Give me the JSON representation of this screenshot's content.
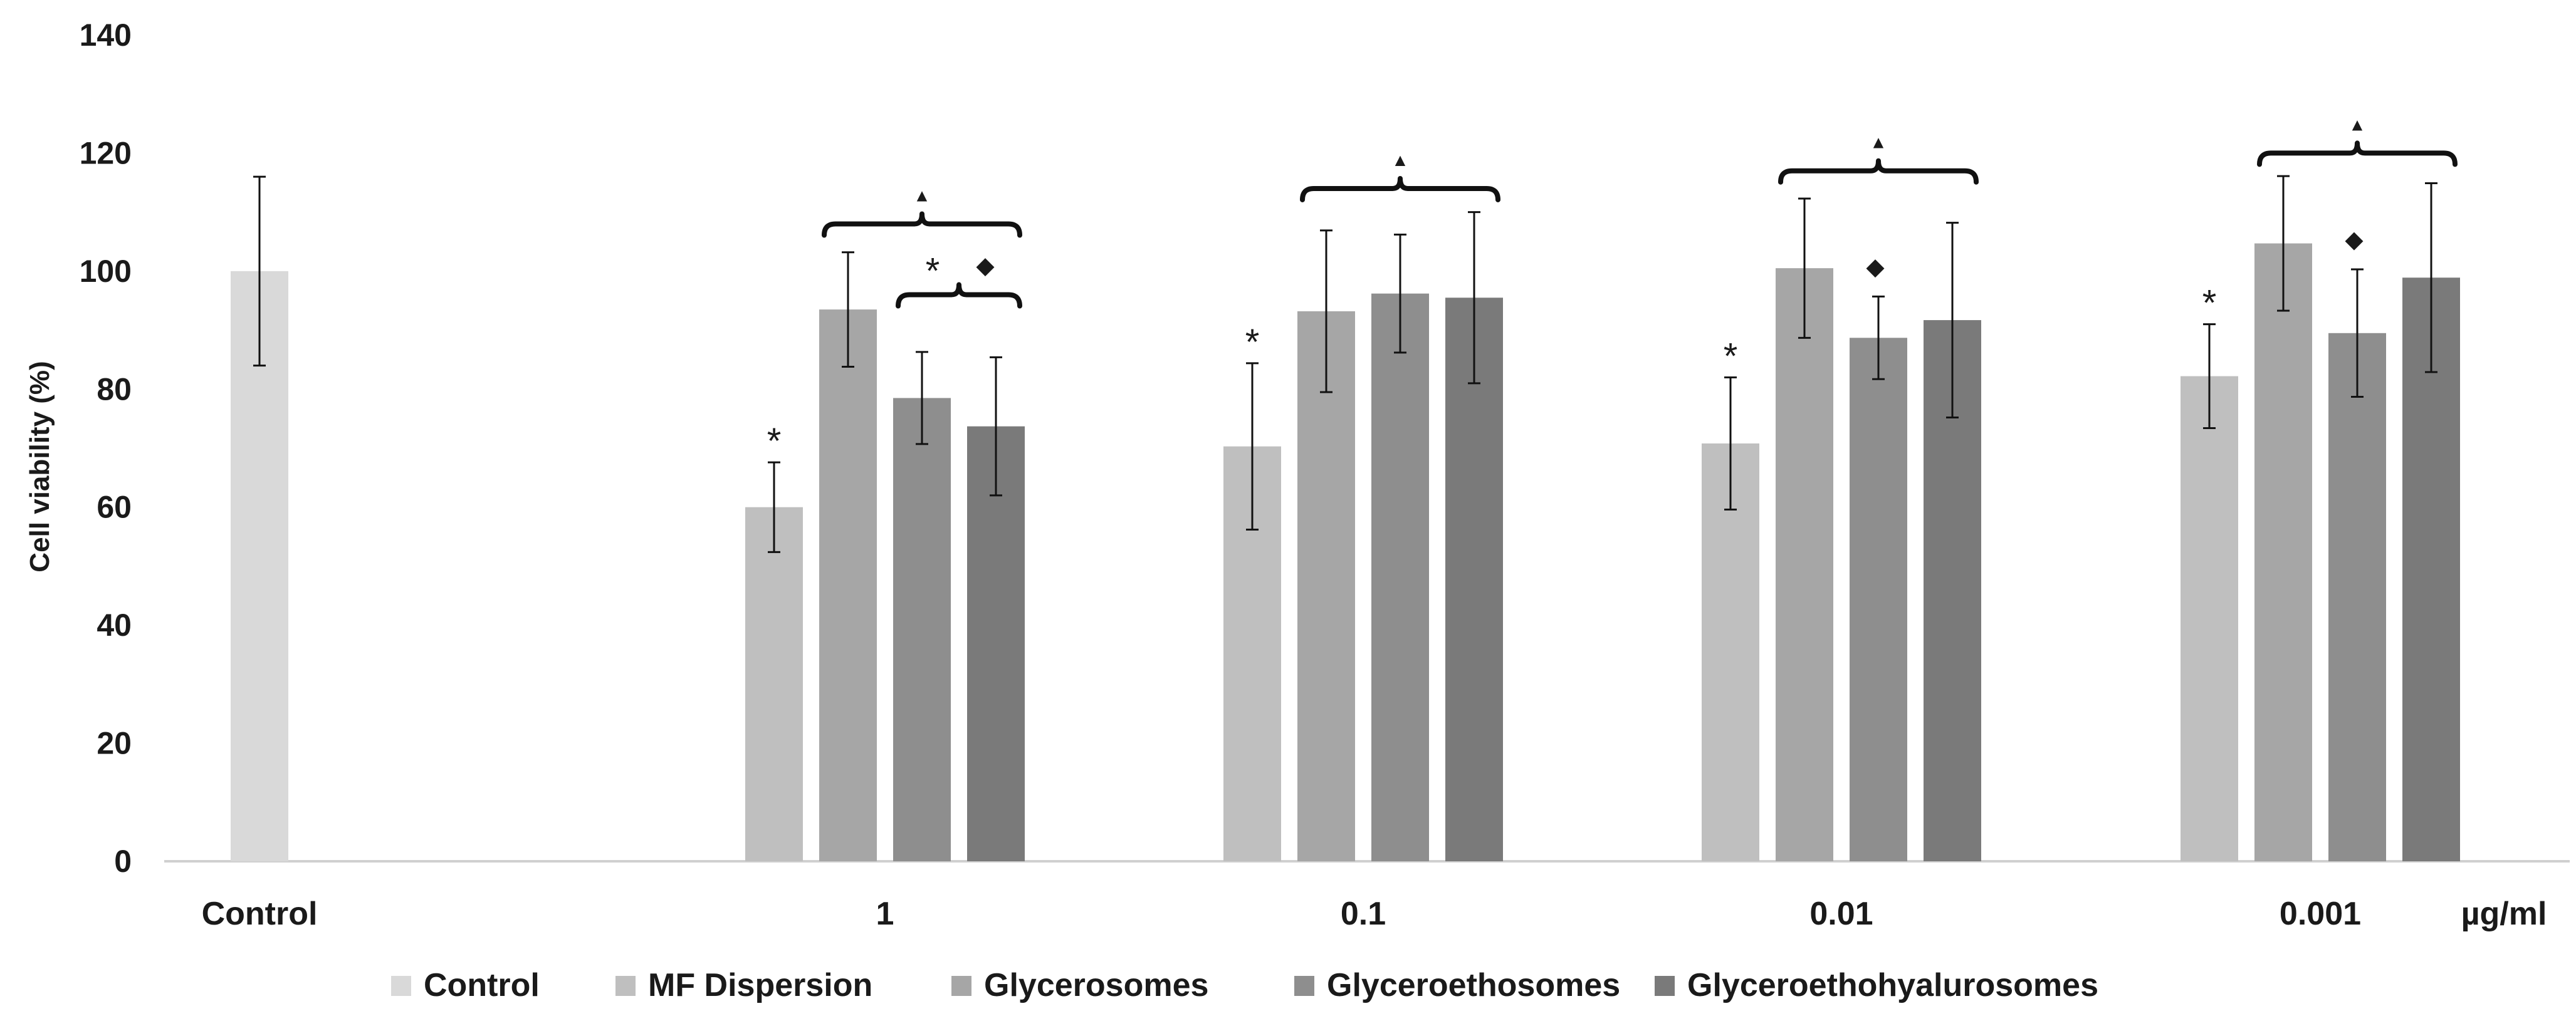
{
  "chart_data": {
    "type": "bar",
    "title": "",
    "xlabel": "",
    "ylabel": "Cell viability (%)",
    "unit_label": "µg/ml",
    "ylim": [
      0,
      140
    ],
    "yticks": [
      0,
      20,
      40,
      60,
      80,
      100,
      120,
      140
    ],
    "categories": [
      "Control",
      "1",
      "0.1",
      "0.01",
      "0.001"
    ],
    "series": [
      {
        "name": "Control",
        "color": "#d9d9d9",
        "values": [
          100,
          null,
          null,
          null,
          null
        ],
        "errors": [
          16,
          null,
          null,
          null,
          null
        ]
      },
      {
        "name": "MF Dispersion",
        "color": "#bfbfbf",
        "values": [
          null,
          60,
          70.3,
          70.8,
          82.2
        ],
        "errors": [
          null,
          7.6,
          14.1,
          11.2,
          8.8
        ]
      },
      {
        "name": "Glycerosomes",
        "color": "#a6a6a6",
        "values": [
          null,
          93.5,
          93.2,
          100.5,
          104.7
        ],
        "errors": [
          null,
          9.7,
          13.7,
          11.8,
          11.4
        ]
      },
      {
        "name": "Glyceroethosomes",
        "color": "#8e8e8e",
        "values": [
          null,
          78.5,
          96.2,
          88.7,
          89.5
        ],
        "errors": [
          null,
          7.8,
          10,
          7,
          10.8
        ]
      },
      {
        "name": "Glyceroethohyalurosomes",
        "color": "#7a7a7a",
        "values": [
          null,
          73.7,
          95.5,
          91.7,
          98.9
        ],
        "errors": [
          null,
          11.7,
          14.5,
          16.5,
          16
        ]
      }
    ],
    "annotations": {
      "asterisk": "*",
      "triangle": "▲",
      "diamond": "◆",
      "asterisk_bars": [
        {
          "category": 1,
          "series": 1
        },
        {
          "category": 2,
          "series": 1
        },
        {
          "category": 3,
          "series": 1
        },
        {
          "category": 4,
          "series": 1
        }
      ],
      "diamond_bars": [
        {
          "category": 3,
          "series": 3
        },
        {
          "category": 4,
          "series": 3
        }
      ],
      "triangle_brackets": [
        {
          "category": 1,
          "from": 2,
          "to": 4,
          "level": 108
        },
        {
          "category": 2,
          "from": 2,
          "to": 4,
          "level": 114
        },
        {
          "category": 3,
          "from": 2,
          "to": 4,
          "level": 117
        },
        {
          "category": 4,
          "from": 2,
          "to": 4,
          "level": 120
        }
      ],
      "star_diamond_brackets": [
        {
          "category": 1,
          "from": 3,
          "to": 4,
          "level": 96
        }
      ]
    }
  }
}
